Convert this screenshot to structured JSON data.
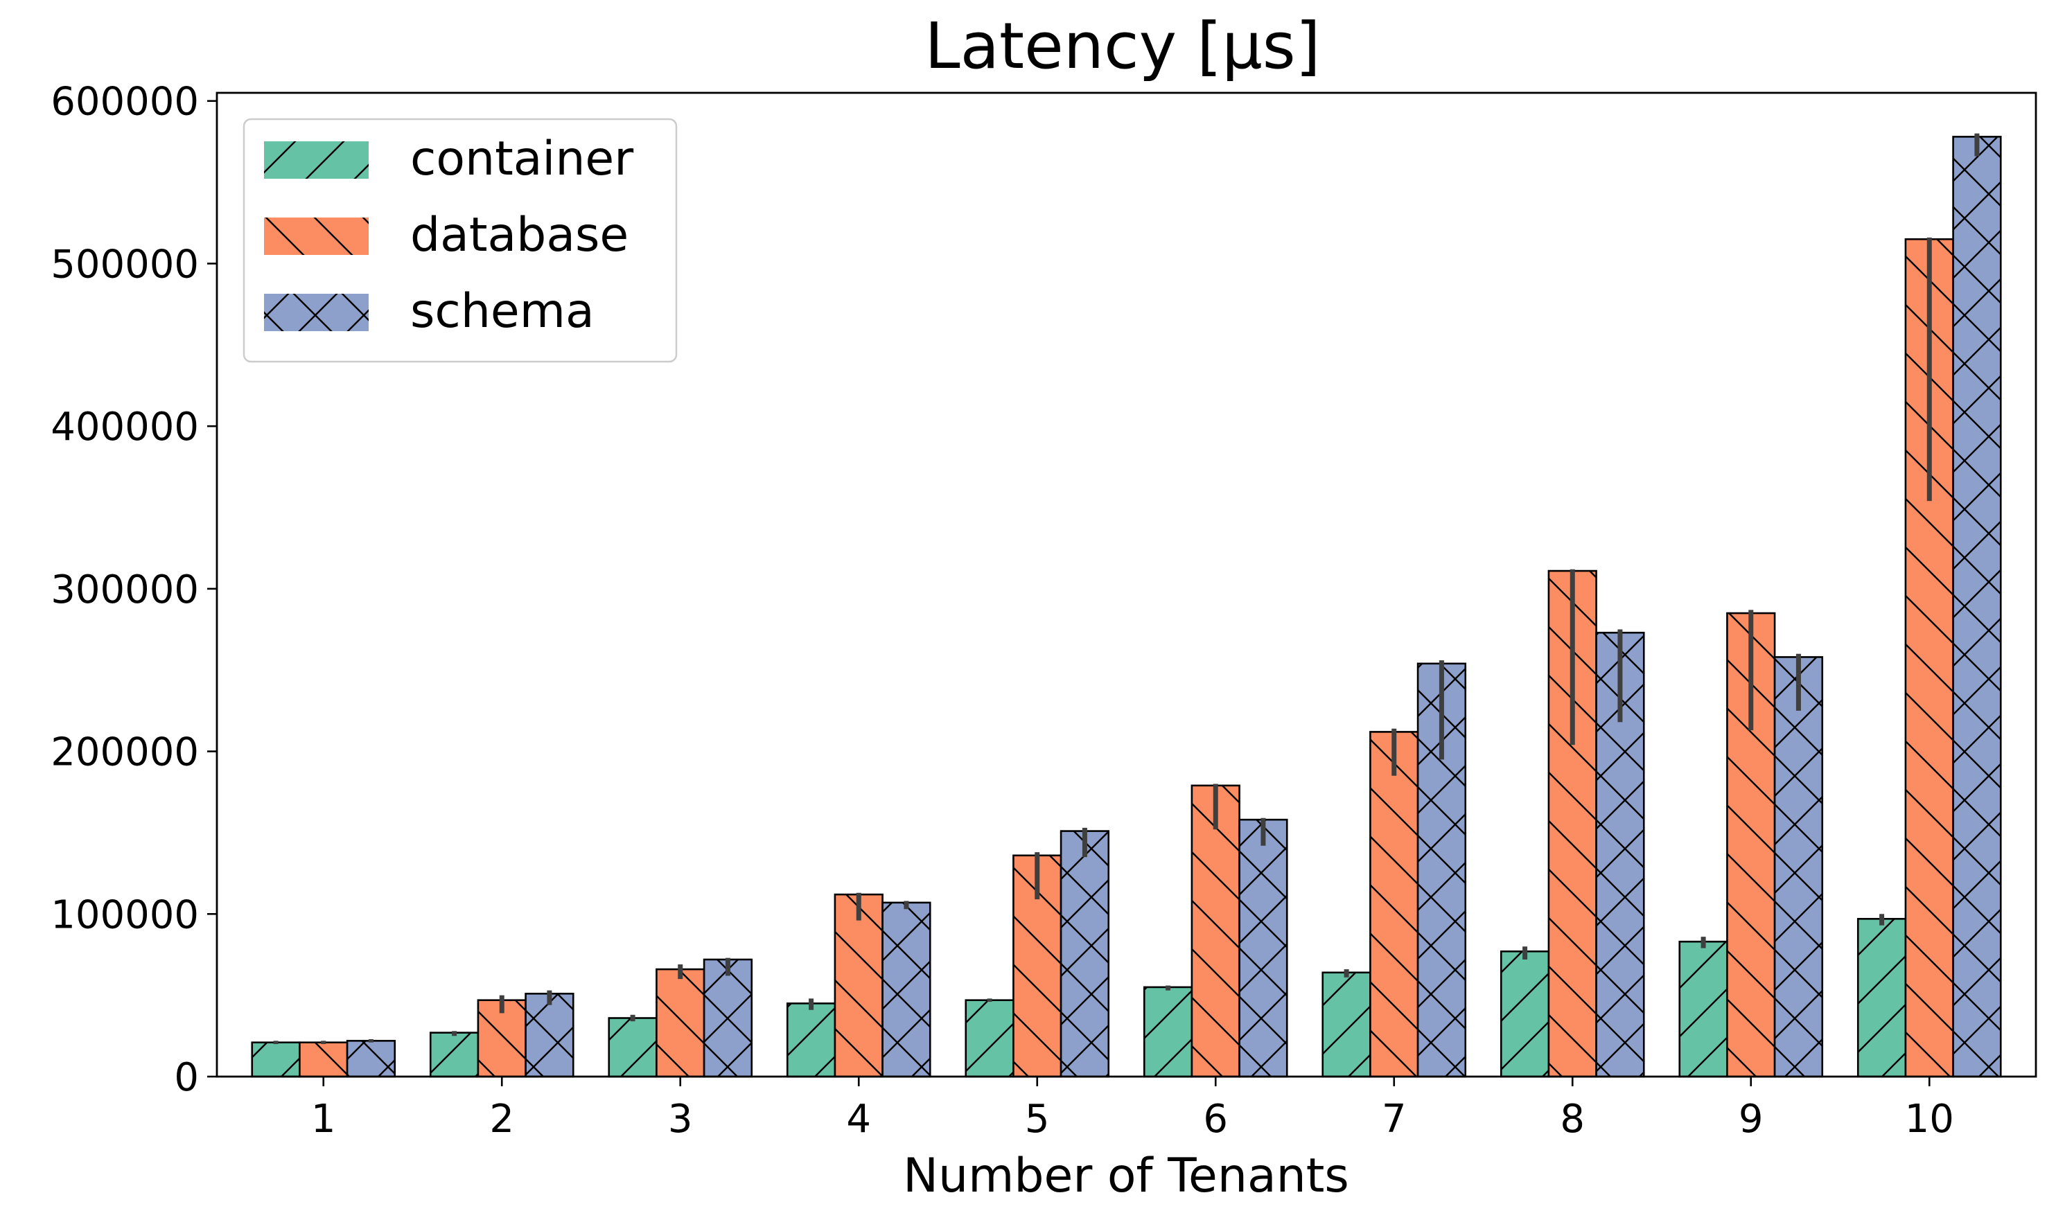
{
  "chart_data": {
    "type": "bar",
    "title": "Latency [μs]",
    "xlabel": "Number of Tenants",
    "ylabel": "",
    "categories": [
      "1",
      "2",
      "3",
      "4",
      "5",
      "6",
      "7",
      "8",
      "9",
      "10"
    ],
    "ylim": [
      0,
      605000
    ],
    "yticks": [
      0,
      100000,
      200000,
      300000,
      400000,
      500000,
      600000
    ],
    "grid": false,
    "legend_position": "top-left",
    "series": [
      {
        "name": "container",
        "color": "#66c2a5",
        "hatch": "forward-diagonal",
        "values": [
          21000,
          27000,
          36000,
          45000,
          47000,
          55000,
          64000,
          77000,
          83000,
          97000
        ],
        "err_low": [
          20000,
          25000,
          34000,
          41000,
          46000,
          53000,
          61000,
          72000,
          79000,
          93000
        ],
        "err_high": [
          22000,
          28000,
          38000,
          48000,
          48000,
          56000,
          66000,
          80000,
          86000,
          100000
        ]
      },
      {
        "name": "database",
        "color": "#fc8d62",
        "hatch": "back-diagonal",
        "values": [
          21000,
          47000,
          66000,
          112000,
          136000,
          179000,
          212000,
          311000,
          285000,
          515000
        ],
        "err_low": [
          20000,
          39000,
          60000,
          96000,
          109000,
          152000,
          185000,
          204000,
          213000,
          354000
        ],
        "err_high": [
          22000,
          50000,
          69000,
          113000,
          138000,
          180000,
          214000,
          312000,
          287000,
          516000
        ]
      },
      {
        "name": "schema",
        "color": "#8da0cb",
        "hatch": "cross",
        "values": [
          22000,
          51000,
          72000,
          107000,
          151000,
          158000,
          254000,
          273000,
          258000,
          578000
        ],
        "err_low": [
          21000,
          44000,
          62000,
          103000,
          135000,
          142000,
          195000,
          218000,
          225000,
          566000
        ],
        "err_high": [
          23000,
          53000,
          73000,
          108000,
          153000,
          159000,
          256000,
          275000,
          260000,
          580000
        ]
      }
    ]
  }
}
